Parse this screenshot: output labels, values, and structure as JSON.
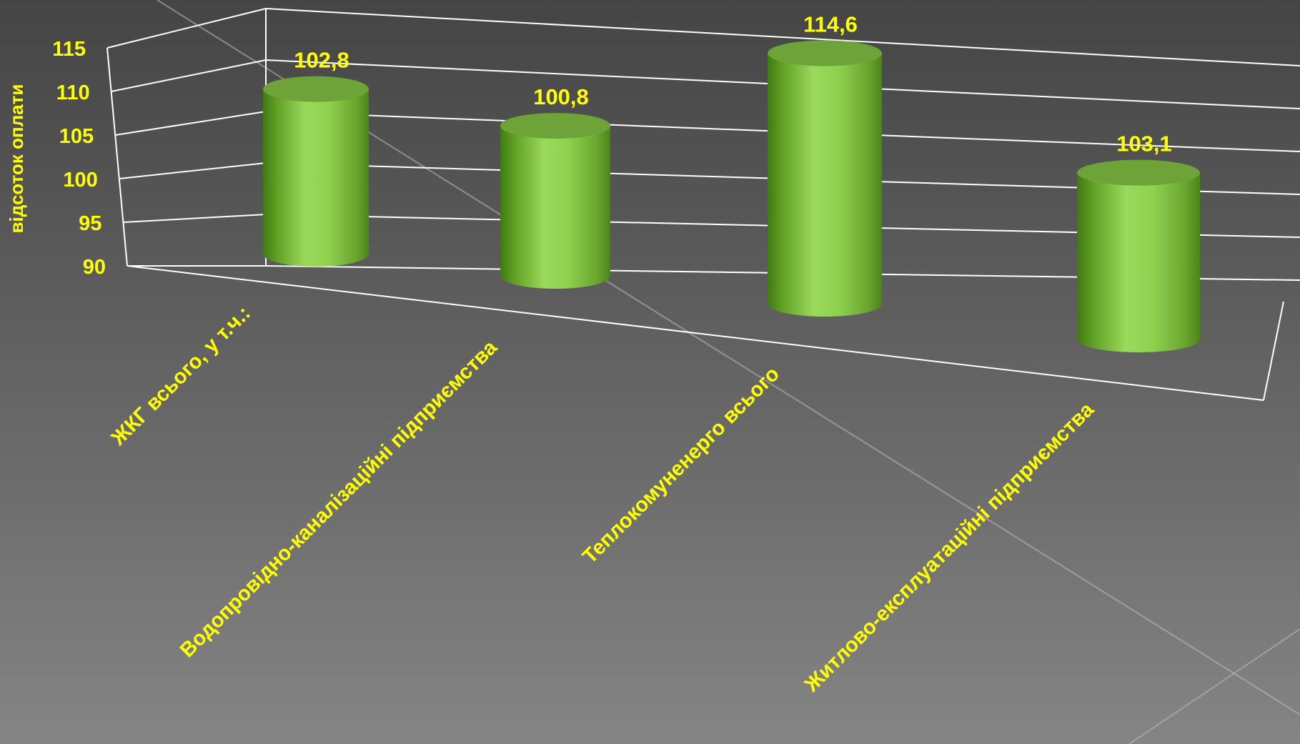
{
  "chart_data": {
    "type": "bar",
    "style": "3d-cylinder",
    "categories": [
      "ЖКГ всього, у т.ч.:",
      "Водопровідно-каналізаційні підприємства",
      "Теплокомуненерго всього",
      "Житлово-експлуатаційні підприємства"
    ],
    "series": [
      {
        "values": [
          102.8,
          100.8,
          114.6,
          103.1
        ]
      }
    ],
    "data_labels": [
      "102,8",
      "100,8",
      "114,6",
      "103,1"
    ],
    "y_ticks": [
      "90",
      "95",
      "100",
      "105",
      "110",
      "115"
    ],
    "ylim": [
      90,
      115
    ],
    "ylabel": "відсоток оплати",
    "xlabel": "",
    "title": "",
    "grid": true,
    "legend": "none",
    "colors": {
      "bar": "#8fd14f",
      "bar_dark": "#3f7a12",
      "bar_top": "#6ea33a",
      "text": "#ffff00",
      "axis": "#ffffff",
      "background": "#5a5a5a"
    }
  }
}
